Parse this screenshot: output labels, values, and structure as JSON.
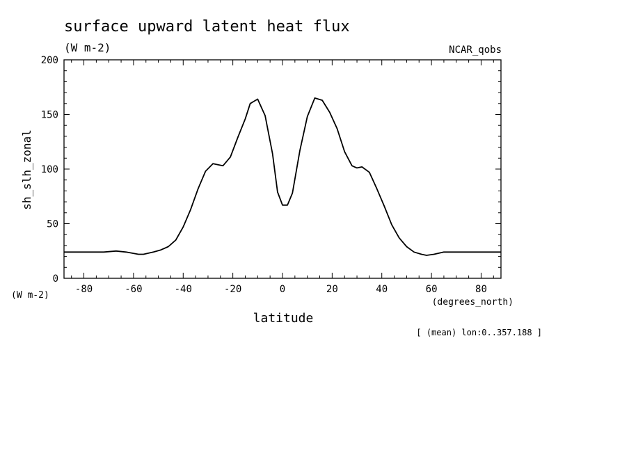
{
  "chart_data": {
    "type": "line",
    "title": "surface upward latent heat flux",
    "subtitle": "(W m-2)",
    "dataset_label": "NCAR_qobs",
    "ylabel": "sh_slh_zonal",
    "yunits": "(W m-2)",
    "xlabel": "latitude",
    "xunits": "(degrees_north)",
    "footnote": "[ (mean) lon:0..357.188 ]",
    "xlim": [
      -88,
      88
    ],
    "ylim": [
      0,
      200
    ],
    "xticks": [
      -80,
      -60,
      -40,
      -20,
      0,
      20,
      40,
      60,
      80
    ],
    "xtick_labels": [
      "-80",
      "-60",
      "-40",
      "-20",
      "0",
      "20",
      "40",
      "60",
      "80"
    ],
    "yticks": [
      0,
      50,
      100,
      150,
      200
    ],
    "ytick_labels": [
      "0",
      "50",
      "100",
      "150",
      "200"
    ],
    "grid": false,
    "line_color": "#000000",
    "series": [
      {
        "x": [
          -88,
          -80,
          -72,
          -67,
          -63,
          -58,
          -56,
          -52,
          -49,
          -46,
          -43,
          -40,
          -37,
          -34,
          -31,
          -28,
          -26,
          -24,
          -21,
          -18,
          -15,
          -13,
          -10,
          -7,
          -4,
          -2,
          0,
          2,
          4,
          7,
          10,
          13,
          16,
          19,
          22,
          25,
          28,
          30,
          32,
          35,
          38,
          41,
          44,
          47,
          50,
          53,
          56,
          58,
          61,
          65,
          70,
          80,
          88
        ],
        "y": [
          24,
          24,
          24,
          25,
          24,
          22,
          22,
          24,
          26,
          29,
          35,
          47,
          63,
          82,
          98,
          105,
          104,
          103,
          111,
          129,
          146,
          160,
          164,
          149,
          114,
          79,
          67,
          67,
          78,
          117,
          148,
          165,
          163,
          152,
          137,
          116,
          103,
          101,
          102,
          97,
          82,
          66,
          49,
          37,
          29,
          24,
          22,
          21,
          22,
          24,
          24,
          24,
          24
        ]
      }
    ]
  }
}
